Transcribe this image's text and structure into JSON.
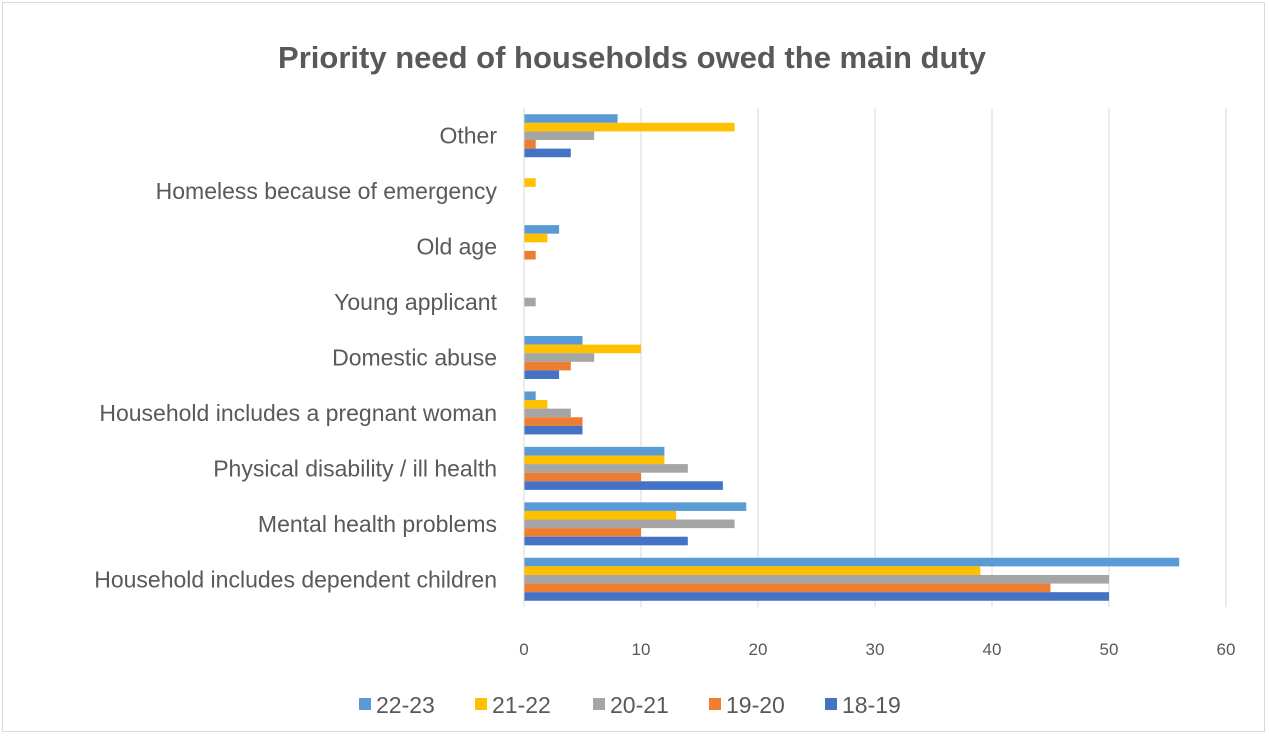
{
  "chart_data": {
    "type": "bar",
    "orientation": "horizontal",
    "title": "Priority need of households owed the main duty",
    "xlabel": "",
    "ylabel": "",
    "xlim": [
      0,
      60
    ],
    "xticks": [
      0,
      10,
      20,
      30,
      40,
      50,
      60
    ],
    "grid": true,
    "legend_position": "bottom",
    "categories": [
      "Other",
      "Homeless because of emergency",
      "Old age",
      "Young applicant",
      "Domestic abuse",
      "Household includes a pregnant woman",
      "Physical disability / ill health",
      "Mental health problems",
      "Household includes dependent children"
    ],
    "series": [
      {
        "name": "22-23",
        "color": "#5B9BD5",
        "values": [
          8,
          0,
          3,
          0,
          5,
          1,
          12,
          19,
          56
        ]
      },
      {
        "name": "21-22",
        "color": "#FFC000",
        "values": [
          18,
          1,
          2,
          0,
          10,
          2,
          12,
          13,
          39
        ]
      },
      {
        "name": "20-21",
        "color": "#A5A5A5",
        "values": [
          6,
          0,
          0,
          1,
          6,
          4,
          14,
          18,
          50
        ]
      },
      {
        "name": "19-20",
        "color": "#ED7D31",
        "values": [
          1,
          0,
          1,
          0,
          4,
          5,
          10,
          10,
          45
        ]
      },
      {
        "name": "18-19",
        "color": "#4472C4",
        "values": [
          4,
          0,
          0,
          0,
          3,
          5,
          17,
          14,
          50
        ]
      }
    ]
  }
}
